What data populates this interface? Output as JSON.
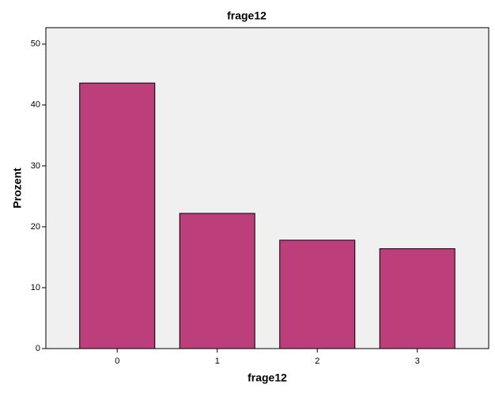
{
  "chart_data": {
    "type": "bar",
    "title": "frage12",
    "x_label": "frage12",
    "y_label": "Prozent",
    "categories": [
      "0",
      "1",
      "2",
      "3"
    ],
    "values": [
      43.6,
      22.2,
      17.8,
      16.4
    ],
    "color": "#bc3f7c",
    "ylim": [
      0,
      52.7
    ],
    "yticks": [
      0,
      10,
      20,
      30,
      40,
      50
    ],
    "grid": false
  }
}
